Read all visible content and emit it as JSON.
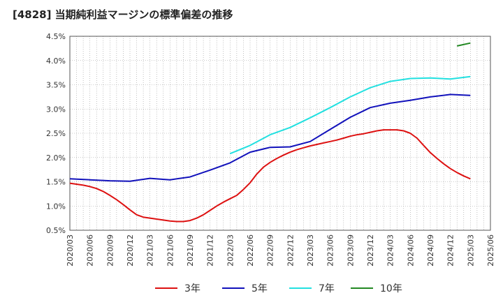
{
  "chart_data": {
    "type": "line",
    "title": "[4828]  当期純利益マージンの標準偏差の推移",
    "xlabel": "",
    "ylabel": "",
    "ylim": [
      0.5,
      4.5
    ],
    "y_ticks": [
      "0.5%",
      "1.0%",
      "1.5%",
      "2.0%",
      "2.5%",
      "3.0%",
      "3.5%",
      "4.0%",
      "4.5%"
    ],
    "y_tick_values": [
      0.5,
      1.0,
      1.5,
      2.0,
      2.5,
      3.0,
      3.5,
      4.0,
      4.5
    ],
    "x_ticks": [
      "2020/03",
      "2020/06",
      "2020/09",
      "2020/12",
      "2021/03",
      "2021/06",
      "2021/09",
      "2021/12",
      "2022/03",
      "2022/06",
      "2022/09",
      "2022/12",
      "2023/03",
      "2023/06",
      "2023/09",
      "2023/12",
      "2024/03",
      "2024/06",
      "2024/09",
      "2024/12",
      "2025/03",
      "2025/06"
    ],
    "grid": true,
    "legend_position": "bottom",
    "series": [
      {
        "name": "3年",
        "color": "#dd1111",
        "x": [
          "2020/03",
          "2020/04",
          "2020/05",
          "2020/06",
          "2020/07",
          "2020/08",
          "2020/09",
          "2020/10",
          "2020/11",
          "2020/12",
          "2021/01",
          "2021/02",
          "2021/03",
          "2021/04",
          "2021/05",
          "2021/06",
          "2021/07",
          "2021/08",
          "2021/09",
          "2021/10",
          "2021/11",
          "2021/12",
          "2022/01",
          "2022/02",
          "2022/03",
          "2022/04",
          "2022/05",
          "2022/06",
          "2022/07",
          "2022/08",
          "2022/09",
          "2022/10",
          "2022/11",
          "2022/12",
          "2023/01",
          "2023/02",
          "2023/03",
          "2023/04",
          "2023/05",
          "2023/06",
          "2023/07",
          "2023/08",
          "2023/09",
          "2023/10",
          "2023/11",
          "2023/12",
          "2024/01",
          "2024/02",
          "2024/03",
          "2024/04",
          "2024/05",
          "2024/06",
          "2024/07",
          "2024/08",
          "2024/09",
          "2024/10",
          "2024/11",
          "2024/12",
          "2025/01",
          "2025/02",
          "2025/03"
        ],
        "values": [
          1.47,
          1.45,
          1.43,
          1.4,
          1.36,
          1.3,
          1.22,
          1.13,
          1.03,
          0.92,
          0.82,
          0.77,
          0.75,
          0.73,
          0.71,
          0.69,
          0.68,
          0.68,
          0.7,
          0.75,
          0.82,
          0.91,
          1.0,
          1.08,
          1.15,
          1.22,
          1.34,
          1.48,
          1.66,
          1.8,
          1.9,
          1.98,
          2.05,
          2.11,
          2.16,
          2.2,
          2.24,
          2.27,
          2.3,
          2.33,
          2.36,
          2.4,
          2.44,
          2.47,
          2.49,
          2.52,
          2.55,
          2.57,
          2.57,
          2.57,
          2.55,
          2.5,
          2.4,
          2.25,
          2.1,
          1.98,
          1.87,
          1.77,
          1.69,
          1.62,
          1.56
        ]
      },
      {
        "name": "5年",
        "color": "#1111bb",
        "x": [
          "2020/03",
          "2020/06",
          "2020/09",
          "2020/12",
          "2021/03",
          "2021/06",
          "2021/09",
          "2021/12",
          "2022/03",
          "2022/06",
          "2022/09",
          "2022/12",
          "2023/03",
          "2023/06",
          "2023/09",
          "2023/12",
          "2024/03",
          "2024/06",
          "2024/09",
          "2024/12",
          "2025/03"
        ],
        "values": [
          1.56,
          1.54,
          1.52,
          1.51,
          1.57,
          1.54,
          1.6,
          1.74,
          1.89,
          2.11,
          2.21,
          2.22,
          2.33,
          2.58,
          2.83,
          3.03,
          3.12,
          3.18,
          3.25,
          3.3,
          3.28
        ]
      },
      {
        "name": "7年",
        "color": "#22e0e0",
        "x": [
          "2022/03",
          "2022/06",
          "2022/09",
          "2022/12",
          "2023/03",
          "2023/06",
          "2023/09",
          "2023/12",
          "2024/03",
          "2024/06",
          "2024/09",
          "2024/12",
          "2025/03"
        ],
        "values": [
          2.08,
          2.25,
          2.47,
          2.62,
          2.82,
          3.03,
          3.25,
          3.44,
          3.57,
          3.63,
          3.64,
          3.62,
          3.67
        ]
      },
      {
        "name": "10年",
        "color": "#228822",
        "x": [
          "2025/01",
          "2025/03"
        ],
        "values": [
          4.3,
          4.36
        ]
      }
    ]
  }
}
